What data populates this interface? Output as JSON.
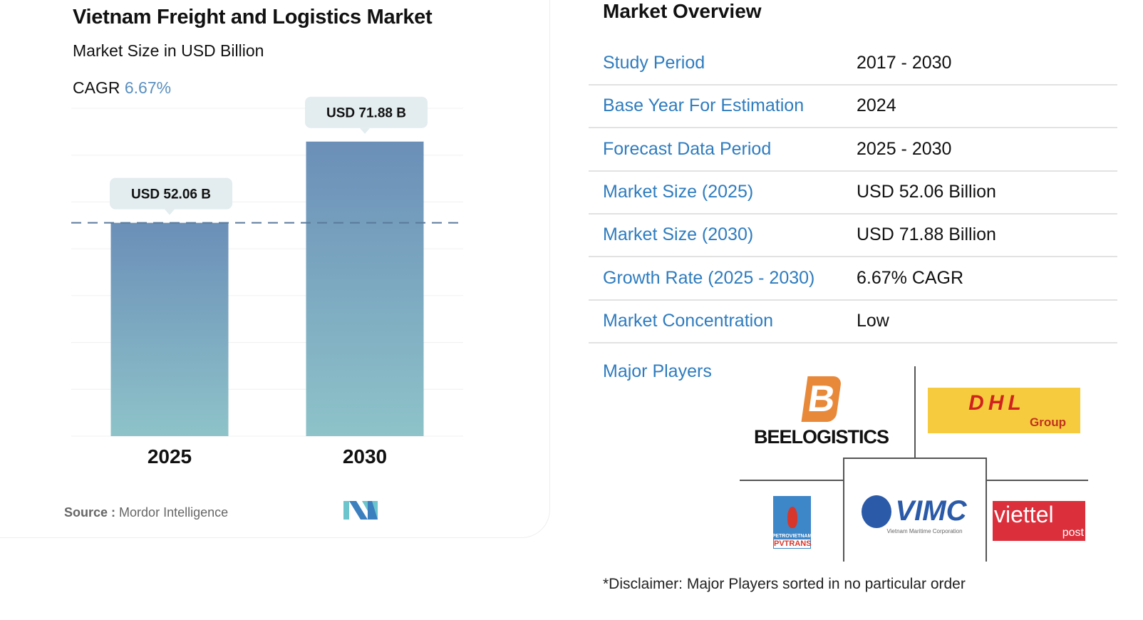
{
  "chart_data": {
    "type": "bar",
    "title": "Vietnam Freight and Logistics Market",
    "subtitle": "Market Size in USD Billion",
    "cagr_label": "CAGR",
    "cagr_value": "6.67%",
    "categories": [
      "2025",
      "2030"
    ],
    "values": [
      52.06,
      71.88
    ],
    "data_labels": [
      "USD 52.06 B",
      "USD 71.88 B"
    ],
    "ylim": [
      0,
      80
    ],
    "grid": true,
    "reference_line": 52.06,
    "colors": {
      "bar_top": "#6b8fb8",
      "bar_bottom": "#8ec3c9",
      "cagr": "#5a8fbf"
    }
  },
  "source": {
    "label": "Source :",
    "value": "Mordor Intelligence"
  },
  "overview": {
    "title": "Market Overview",
    "rows": [
      {
        "label": "Study Period",
        "value": "2017 - 2030"
      },
      {
        "label": "Base Year For Estimation",
        "value": "2024"
      },
      {
        "label": "Forecast Data Period",
        "value": "2025 - 2030"
      },
      {
        "label": "Market Size (2025)",
        "value": "USD 52.06 Billion"
      },
      {
        "label": "Market Size (2030)",
        "value": "USD 71.88 Billion"
      },
      {
        "label": "Growth Rate (2025 - 2030)",
        "value": "6.67% CAGR"
      },
      {
        "label": "Market Concentration",
        "value": "Low"
      }
    ],
    "major_players_label": "Major Players",
    "players": [
      "BEELOGISTICS",
      "DHL Group",
      "PETROVIETNAM PVTRANS",
      "VIMC Vietnam Maritime Corporation",
      "viettel post"
    ],
    "disclaimer": "*Disclaimer: Major Players sorted in no particular order"
  }
}
